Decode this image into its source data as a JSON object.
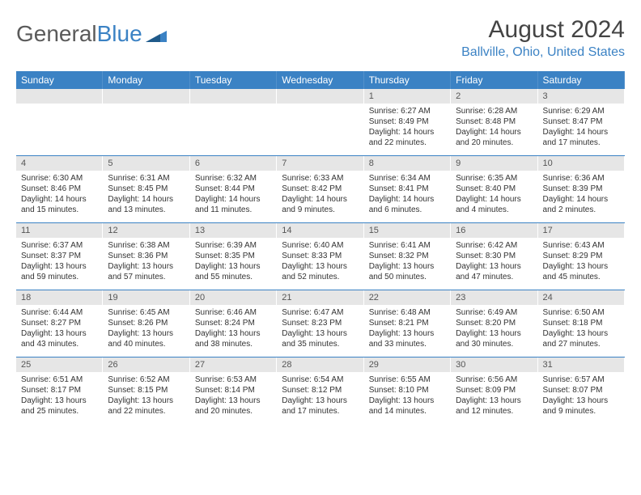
{
  "logo": {
    "text1": "General",
    "text2": "Blue"
  },
  "title": "August 2024",
  "location": "Ballville, Ohio, United States",
  "colors": {
    "header_bg": "#3b82c4",
    "header_text": "#ffffff",
    "date_bar_bg": "#e6e6e6",
    "text": "#333333",
    "logo_gray": "#5a5a5a",
    "logo_blue": "#3b82c4"
  },
  "day_headers": [
    "Sunday",
    "Monday",
    "Tuesday",
    "Wednesday",
    "Thursday",
    "Friday",
    "Saturday"
  ],
  "weeks": [
    [
      {
        "date": "",
        "sunrise": "",
        "sunset": "",
        "daylight": ""
      },
      {
        "date": "",
        "sunrise": "",
        "sunset": "",
        "daylight": ""
      },
      {
        "date": "",
        "sunrise": "",
        "sunset": "",
        "daylight": ""
      },
      {
        "date": "",
        "sunrise": "",
        "sunset": "",
        "daylight": ""
      },
      {
        "date": "1",
        "sunrise": "Sunrise: 6:27 AM",
        "sunset": "Sunset: 8:49 PM",
        "daylight": "Daylight: 14 hours and 22 minutes."
      },
      {
        "date": "2",
        "sunrise": "Sunrise: 6:28 AM",
        "sunset": "Sunset: 8:48 PM",
        "daylight": "Daylight: 14 hours and 20 minutes."
      },
      {
        "date": "3",
        "sunrise": "Sunrise: 6:29 AM",
        "sunset": "Sunset: 8:47 PM",
        "daylight": "Daylight: 14 hours and 17 minutes."
      }
    ],
    [
      {
        "date": "4",
        "sunrise": "Sunrise: 6:30 AM",
        "sunset": "Sunset: 8:46 PM",
        "daylight": "Daylight: 14 hours and 15 minutes."
      },
      {
        "date": "5",
        "sunrise": "Sunrise: 6:31 AM",
        "sunset": "Sunset: 8:45 PM",
        "daylight": "Daylight: 14 hours and 13 minutes."
      },
      {
        "date": "6",
        "sunrise": "Sunrise: 6:32 AM",
        "sunset": "Sunset: 8:44 PM",
        "daylight": "Daylight: 14 hours and 11 minutes."
      },
      {
        "date": "7",
        "sunrise": "Sunrise: 6:33 AM",
        "sunset": "Sunset: 8:42 PM",
        "daylight": "Daylight: 14 hours and 9 minutes."
      },
      {
        "date": "8",
        "sunrise": "Sunrise: 6:34 AM",
        "sunset": "Sunset: 8:41 PM",
        "daylight": "Daylight: 14 hours and 6 minutes."
      },
      {
        "date": "9",
        "sunrise": "Sunrise: 6:35 AM",
        "sunset": "Sunset: 8:40 PM",
        "daylight": "Daylight: 14 hours and 4 minutes."
      },
      {
        "date": "10",
        "sunrise": "Sunrise: 6:36 AM",
        "sunset": "Sunset: 8:39 PM",
        "daylight": "Daylight: 14 hours and 2 minutes."
      }
    ],
    [
      {
        "date": "11",
        "sunrise": "Sunrise: 6:37 AM",
        "sunset": "Sunset: 8:37 PM",
        "daylight": "Daylight: 13 hours and 59 minutes."
      },
      {
        "date": "12",
        "sunrise": "Sunrise: 6:38 AM",
        "sunset": "Sunset: 8:36 PM",
        "daylight": "Daylight: 13 hours and 57 minutes."
      },
      {
        "date": "13",
        "sunrise": "Sunrise: 6:39 AM",
        "sunset": "Sunset: 8:35 PM",
        "daylight": "Daylight: 13 hours and 55 minutes."
      },
      {
        "date": "14",
        "sunrise": "Sunrise: 6:40 AM",
        "sunset": "Sunset: 8:33 PM",
        "daylight": "Daylight: 13 hours and 52 minutes."
      },
      {
        "date": "15",
        "sunrise": "Sunrise: 6:41 AM",
        "sunset": "Sunset: 8:32 PM",
        "daylight": "Daylight: 13 hours and 50 minutes."
      },
      {
        "date": "16",
        "sunrise": "Sunrise: 6:42 AM",
        "sunset": "Sunset: 8:30 PM",
        "daylight": "Daylight: 13 hours and 47 minutes."
      },
      {
        "date": "17",
        "sunrise": "Sunrise: 6:43 AM",
        "sunset": "Sunset: 8:29 PM",
        "daylight": "Daylight: 13 hours and 45 minutes."
      }
    ],
    [
      {
        "date": "18",
        "sunrise": "Sunrise: 6:44 AM",
        "sunset": "Sunset: 8:27 PM",
        "daylight": "Daylight: 13 hours and 43 minutes."
      },
      {
        "date": "19",
        "sunrise": "Sunrise: 6:45 AM",
        "sunset": "Sunset: 8:26 PM",
        "daylight": "Daylight: 13 hours and 40 minutes."
      },
      {
        "date": "20",
        "sunrise": "Sunrise: 6:46 AM",
        "sunset": "Sunset: 8:24 PM",
        "daylight": "Daylight: 13 hours and 38 minutes."
      },
      {
        "date": "21",
        "sunrise": "Sunrise: 6:47 AM",
        "sunset": "Sunset: 8:23 PM",
        "daylight": "Daylight: 13 hours and 35 minutes."
      },
      {
        "date": "22",
        "sunrise": "Sunrise: 6:48 AM",
        "sunset": "Sunset: 8:21 PM",
        "daylight": "Daylight: 13 hours and 33 minutes."
      },
      {
        "date": "23",
        "sunrise": "Sunrise: 6:49 AM",
        "sunset": "Sunset: 8:20 PM",
        "daylight": "Daylight: 13 hours and 30 minutes."
      },
      {
        "date": "24",
        "sunrise": "Sunrise: 6:50 AM",
        "sunset": "Sunset: 8:18 PM",
        "daylight": "Daylight: 13 hours and 27 minutes."
      }
    ],
    [
      {
        "date": "25",
        "sunrise": "Sunrise: 6:51 AM",
        "sunset": "Sunset: 8:17 PM",
        "daylight": "Daylight: 13 hours and 25 minutes."
      },
      {
        "date": "26",
        "sunrise": "Sunrise: 6:52 AM",
        "sunset": "Sunset: 8:15 PM",
        "daylight": "Daylight: 13 hours and 22 minutes."
      },
      {
        "date": "27",
        "sunrise": "Sunrise: 6:53 AM",
        "sunset": "Sunset: 8:14 PM",
        "daylight": "Daylight: 13 hours and 20 minutes."
      },
      {
        "date": "28",
        "sunrise": "Sunrise: 6:54 AM",
        "sunset": "Sunset: 8:12 PM",
        "daylight": "Daylight: 13 hours and 17 minutes."
      },
      {
        "date": "29",
        "sunrise": "Sunrise: 6:55 AM",
        "sunset": "Sunset: 8:10 PM",
        "daylight": "Daylight: 13 hours and 14 minutes."
      },
      {
        "date": "30",
        "sunrise": "Sunrise: 6:56 AM",
        "sunset": "Sunset: 8:09 PM",
        "daylight": "Daylight: 13 hours and 12 minutes."
      },
      {
        "date": "31",
        "sunrise": "Sunrise: 6:57 AM",
        "sunset": "Sunset: 8:07 PM",
        "daylight": "Daylight: 13 hours and 9 minutes."
      }
    ]
  ]
}
